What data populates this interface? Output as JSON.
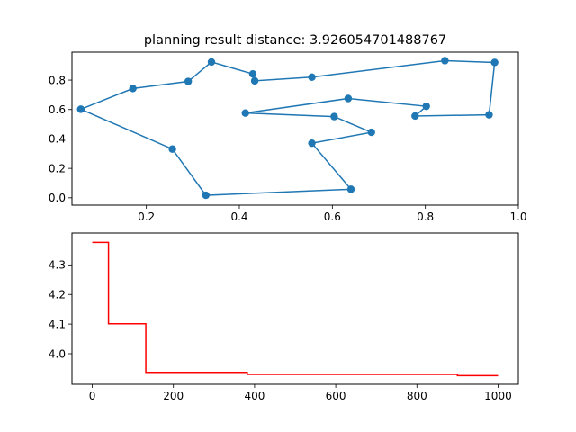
{
  "chart_data": [
    {
      "type": "line",
      "title": "planning result distance: 3.926054701488767",
      "xlabel": "",
      "ylabel": "",
      "xlim": [
        0.04,
        1.0
      ],
      "ylim": [
        -0.05,
        0.99
      ],
      "xticks": [
        "0.2",
        "0.4",
        "0.6",
        "0.8",
        "1.0"
      ],
      "xtick_values": [
        0.2,
        0.4,
        0.6,
        0.8,
        1.0
      ],
      "yticks": [
        "0.0",
        "0.2",
        "0.4",
        "0.6",
        "0.8"
      ],
      "ytick_values": [
        0.0,
        0.2,
        0.4,
        0.6,
        0.8
      ],
      "grid": false,
      "color": "#1f77b4",
      "marker": "circle",
      "series": [
        {
          "x": [
            0.059,
            0.171,
            0.29,
            0.34,
            0.429,
            0.433,
            0.556,
            0.842,
            0.949,
            0.937,
            0.778,
            0.802,
            0.634,
            0.413,
            0.604,
            0.684,
            0.556,
            0.64,
            0.328,
            0.256,
            0.059
          ],
          "y": [
            0.602,
            0.743,
            0.791,
            0.923,
            0.842,
            0.795,
            0.82,
            0.932,
            0.92,
            0.564,
            0.556,
            0.622,
            0.675,
            0.576,
            0.552,
            0.445,
            0.371,
            0.058,
            0.017,
            0.331,
            0.602
          ]
        }
      ]
    },
    {
      "type": "line",
      "title": "",
      "xlabel": "",
      "ylabel": "",
      "xlim": [
        -50,
        1050
      ],
      "ylim": [
        3.8966,
        4.4075
      ],
      "xticks": [
        "0",
        "200",
        "400",
        "600",
        "800",
        "1000"
      ],
      "xtick_values": [
        0,
        200,
        400,
        600,
        800,
        1000
      ],
      "yticks": [
        "4.0",
        "4.1",
        "4.2",
        "4.3"
      ],
      "ytick_values": [
        4.0,
        4.1,
        4.2,
        4.3
      ],
      "grid": false,
      "color": "#ff0000",
      "series": [
        {
          "x": [
            0,
            40,
            40,
            132,
            132,
            382,
            382,
            900,
            900,
            1000
          ],
          "y": [
            4.376,
            4.376,
            4.101,
            4.101,
            3.937,
            3.937,
            3.93,
            3.93,
            3.926,
            3.926
          ]
        }
      ]
    }
  ]
}
